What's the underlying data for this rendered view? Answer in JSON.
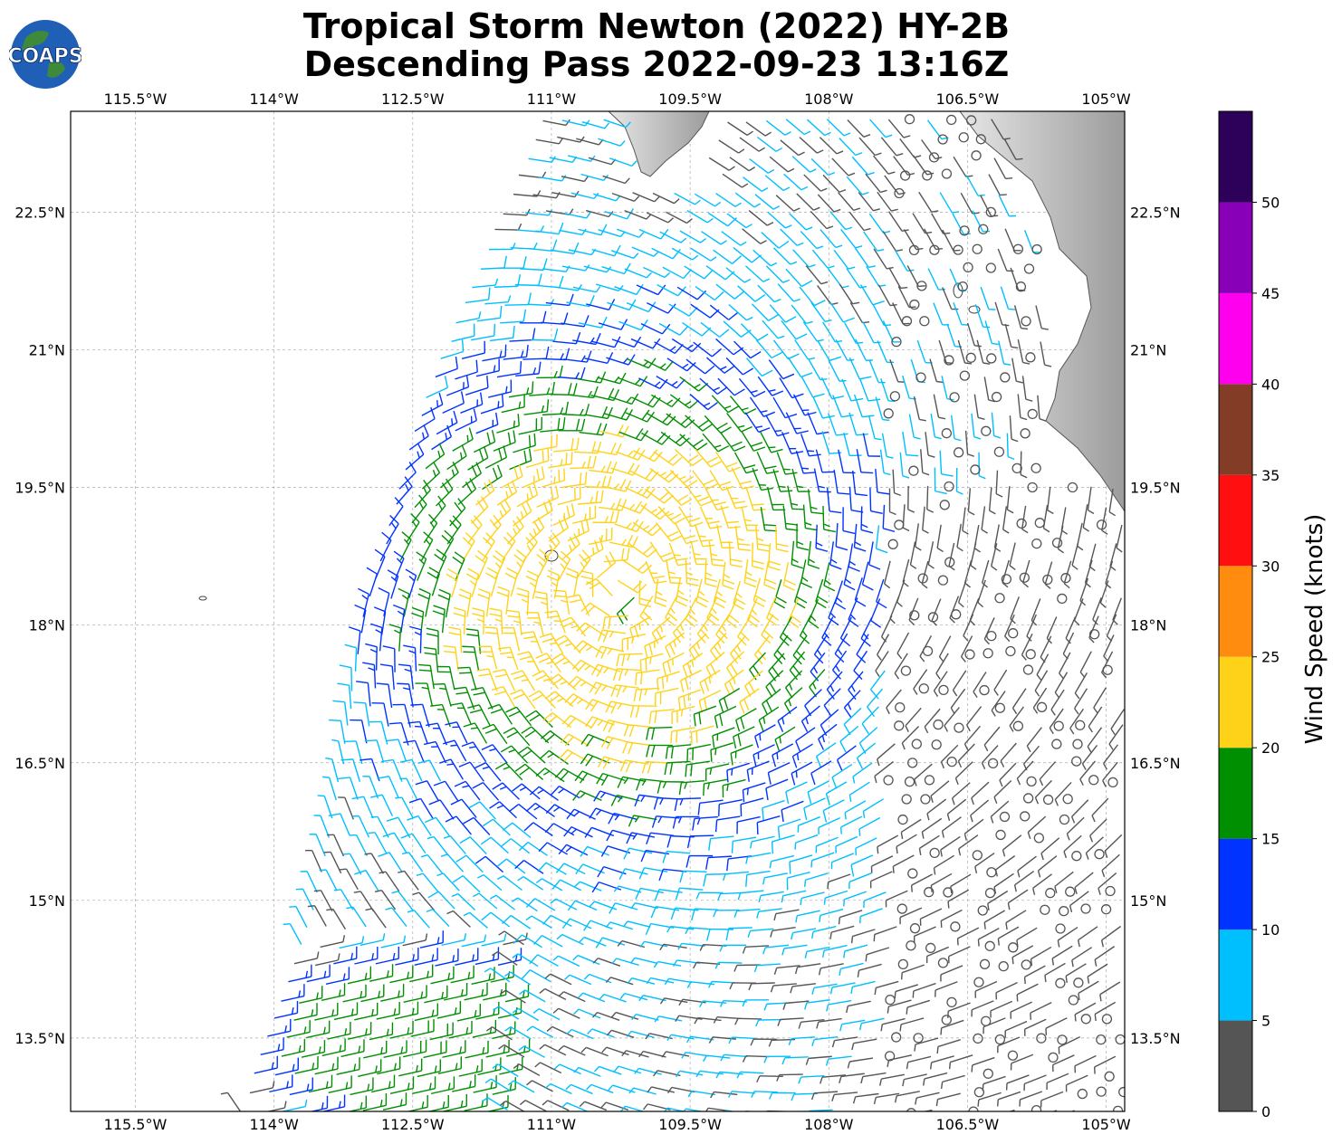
{
  "title": {
    "line1": "Tropical Storm Newton (2022) HY-2B",
    "line2": "Descending Pass 2022-09-23 13:16Z"
  },
  "logo": {
    "text": "COAPS",
    "icon": "globe-icon"
  },
  "axes": {
    "lon_labels": [
      "115.5°W",
      "114°W",
      "112.5°W",
      "111°W",
      "109.5°W",
      "108°W",
      "106.5°W",
      "105°W"
    ],
    "lon_values": [
      -115.5,
      -114,
      -112.5,
      -111,
      -109.5,
      -108,
      -106.5,
      -105
    ],
    "lat_labels": [
      "22.5°N",
      "21°N",
      "19.5°N",
      "18°N",
      "16.5°N",
      "15°N",
      "13.5°N"
    ],
    "lat_values": [
      22.5,
      21,
      19.5,
      18,
      16.5,
      15,
      13.5
    ],
    "lon_range": [
      -116.2,
      -104.8
    ],
    "lat_range": [
      12.7,
      23.6
    ]
  },
  "colorbar": {
    "label": "Wind Speed (knots)",
    "ticks": [
      "0",
      "5",
      "10",
      "15",
      "20",
      "25",
      "30",
      "35",
      "40",
      "45",
      "50"
    ],
    "bins": [
      {
        "min": 0,
        "max": 5,
        "color": "#555555"
      },
      {
        "min": 5,
        "max": 10,
        "color": "#00bfff"
      },
      {
        "min": 10,
        "max": 15,
        "color": "#0033ff"
      },
      {
        "min": 15,
        "max": 20,
        "color": "#008f00"
      },
      {
        "min": 20,
        "max": 25,
        "color": "#ffd21a"
      },
      {
        "min": 25,
        "max": 30,
        "color": "#ff8c0f"
      },
      {
        "min": 30,
        "max": 35,
        "color": "#ff0f0f"
      },
      {
        "min": 35,
        "max": 40,
        "color": "#833d27"
      },
      {
        "min": 40,
        "max": 45,
        "color": "#ff00ee"
      },
      {
        "min": 45,
        "max": 50,
        "color": "#8800b8"
      },
      {
        "min": 50,
        "max": 55,
        "color": "#2d0059"
      }
    ]
  },
  "chart_data": {
    "type": "wind_barbs",
    "units": "knots",
    "storm_center": {
      "lon": -110.3,
      "lat": 18.4
    },
    "swath_west_edge": [
      [
        -111.1,
        23.6
      ],
      [
        -112.4,
        20.5
      ],
      [
        -113.1,
        18.0
      ],
      [
        -113.3,
        16.5
      ],
      [
        -113.6,
        15.0
      ],
      [
        -114.4,
        12.7
      ]
    ],
    "swath_east_edge": [
      -104.8
    ],
    "max_wind_region": {
      "lon": -110.7,
      "lat": 17.8,
      "speed": 22
    },
    "secondary_band": {
      "lon": -112.5,
      "lat": 13.4,
      "speed": 18
    }
  }
}
